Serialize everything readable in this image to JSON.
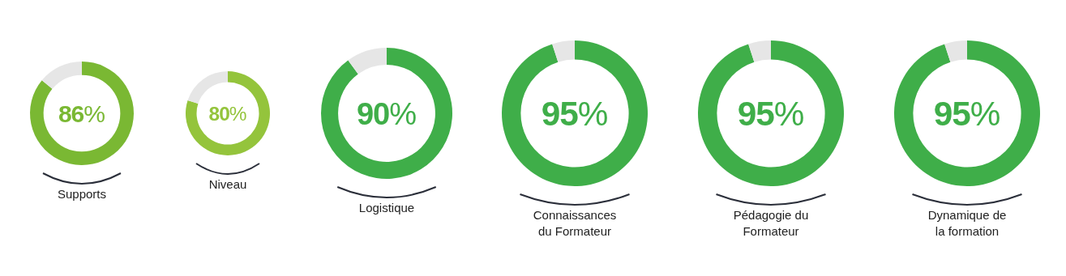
{
  "chart_data": [
    {
      "type": "donut",
      "title": "Supports",
      "categories": [
        null,
        null
      ],
      "values": [
        86,
        14
      ],
      "colors": [
        "#7ab833",
        "#e6e6e6"
      ],
      "value_labels": [
        "86%",
        null
      ]
    },
    {
      "type": "donut",
      "title": "Niveau",
      "categories": [
        null,
        null
      ],
      "values": [
        80,
        20
      ],
      "colors": [
        "#94c43c",
        "#e6e6e6"
      ],
      "value_labels": [
        "80%",
        null
      ]
    },
    {
      "type": "donut",
      "title": "Logistique",
      "categories": [
        null,
        null
      ],
      "values": [
        90,
        10
      ],
      "colors": [
        "#3fae49",
        "#e6e6e6"
      ],
      "value_labels": [
        "90%",
        null
      ]
    },
    {
      "type": "donut",
      "title": "Connaissances\ndu Formateur",
      "categories": [
        null,
        null
      ],
      "values": [
        95,
        5
      ],
      "colors": [
        "#3fae49",
        "#e6e6e6"
      ],
      "value_labels": [
        "95%",
        null
      ]
    },
    {
      "type": "donut",
      "title": "Pédagogie du\nFormateur",
      "categories": [
        null,
        null
      ],
      "values": [
        95,
        5
      ],
      "colors": [
        "#3fae49",
        "#e6e6e6"
      ],
      "value_labels": [
        "95%",
        null
      ]
    },
    {
      "type": "donut",
      "title": "Dynamique de\nla formation",
      "categories": [
        null,
        null
      ],
      "values": [
        95,
        5
      ],
      "colors": [
        "#3fae49",
        "#e6e6e6"
      ],
      "value_labels": [
        "95%",
        null
      ]
    }
  ]
}
